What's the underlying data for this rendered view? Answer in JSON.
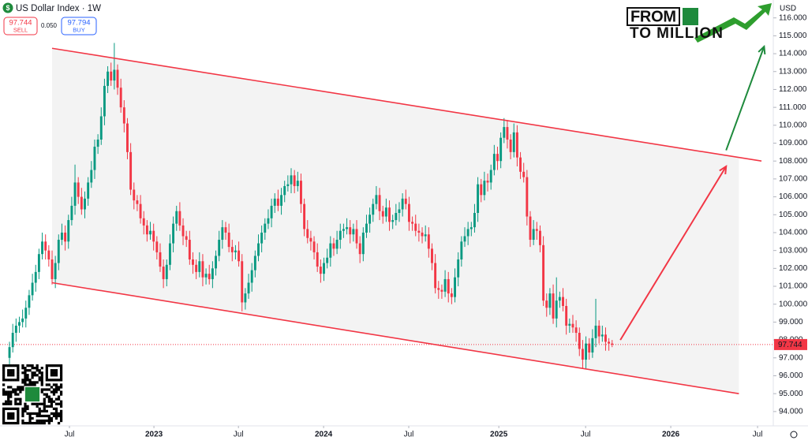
{
  "header": {
    "symbol": "US Dollar Index · 1W",
    "sell": {
      "price": 97.744,
      "label": "SELL"
    },
    "spread": "0.050",
    "buy": {
      "price": 97.794,
      "label": "BUY"
    }
  },
  "logo": {
    "line1": "FROM",
    "line2": "TO MILLION"
  },
  "chart_data": {
    "type": "candlestick",
    "currency": "USD",
    "up_color": "#089981",
    "down_color": "#f23645",
    "candles": [
      [
        97.0,
        97.9,
        96.6,
        97.6
      ],
      [
        97.6,
        98.9,
        97.3,
        98.4
      ],
      [
        98.4,
        99.2,
        97.9,
        98.8
      ],
      [
        98.8,
        99.3,
        98.4,
        99.0
      ],
      [
        99.0,
        99.7,
        98.7,
        99.2
      ],
      [
        99.2,
        100.2,
        98.7,
        99.8
      ],
      [
        99.8,
        100.8,
        99.4,
        100.5
      ],
      [
        100.5,
        101.7,
        100.2,
        101.2
      ],
      [
        101.2,
        102.2,
        100.7,
        101.8
      ],
      [
        101.8,
        103.1,
        101.4,
        102.8
      ],
      [
        102.8,
        104.0,
        102.5,
        103.5
      ],
      [
        103.5,
        103.9,
        102.5,
        103.0
      ],
      [
        103.0,
        103.3,
        102.1,
        102.5
      ],
      [
        102.5,
        103.0,
        101.1,
        101.4
      ],
      [
        101.4,
        102.7,
        100.9,
        102.3
      ],
      [
        102.3,
        103.9,
        101.9,
        103.6
      ],
      [
        103.6,
        104.5,
        103.3,
        104.0
      ],
      [
        104.0,
        104.4,
        103.0,
        103.5
      ],
      [
        103.5,
        105.0,
        103.1,
        104.7
      ],
      [
        104.7,
        106.0,
        104.4,
        105.5
      ],
      [
        105.5,
        107.8,
        105.0,
        106.8
      ],
      [
        106.8,
        107.1,
        105.6,
        106.0
      ],
      [
        106.0,
        106.5,
        105.0,
        105.3
      ],
      [
        105.3,
        106.3,
        104.8,
        105.9
      ],
      [
        105.9,
        107.1,
        105.5,
        106.8
      ],
      [
        106.8,
        108.0,
        106.5,
        107.5
      ],
      [
        107.5,
        109.2,
        107.0,
        108.8
      ],
      [
        108.8,
        109.5,
        108.4,
        109.2
      ],
      [
        109.2,
        111.0,
        108.9,
        110.5
      ],
      [
        110.5,
        112.6,
        110.0,
        112.2
      ],
      [
        112.2,
        113.3,
        111.8,
        113.0
      ],
      [
        113.0,
        113.5,
        112.2,
        112.5
      ],
      [
        112.5,
        114.6,
        112.0,
        113.1
      ],
      [
        113.1,
        113.4,
        111.7,
        112.1
      ],
      [
        112.1,
        112.6,
        110.7,
        111.0
      ],
      [
        111.0,
        111.4,
        109.6,
        110.1
      ],
      [
        110.1,
        110.4,
        108.1,
        108.5
      ],
      [
        108.5,
        109.0,
        106.1,
        106.4
      ],
      [
        106.4,
        106.8,
        105.3,
        105.8
      ],
      [
        105.8,
        106.1,
        105.2,
        105.6
      ],
      [
        105.6,
        106.1,
        104.5,
        104.8
      ],
      [
        104.8,
        105.2,
        103.9,
        104.4
      ],
      [
        104.4,
        104.7,
        103.5,
        103.9
      ],
      [
        103.9,
        104.6,
        103.6,
        104.1
      ],
      [
        104.1,
        104.5,
        103.0,
        103.5
      ],
      [
        103.5,
        103.8,
        102.5,
        102.9
      ],
      [
        102.9,
        103.4,
        101.8,
        102.1
      ],
      [
        102.1,
        102.5,
        100.9,
        101.4
      ],
      [
        101.4,
        102.5,
        101.0,
        102.2
      ],
      [
        102.2,
        103.9,
        101.9,
        103.4
      ],
      [
        103.4,
        104.9,
        102.9,
        104.5
      ],
      [
        104.5,
        105.5,
        104.1,
        105.2
      ],
      [
        105.2,
        105.7,
        104.1,
        104.4
      ],
      [
        104.4,
        104.8,
        103.3,
        103.8
      ],
      [
        103.8,
        104.1,
        103.2,
        103.6
      ],
      [
        103.6,
        104.1,
        102.2,
        102.5
      ],
      [
        102.5,
        102.9,
        101.7,
        102.2
      ],
      [
        102.2,
        102.5,
        101.4,
        101.8
      ],
      [
        101.8,
        102.9,
        101.5,
        102.4
      ],
      [
        102.4,
        102.8,
        101.0,
        101.5
      ],
      [
        101.5,
        102.0,
        101.1,
        101.7
      ],
      [
        101.7,
        102.2,
        101.1,
        101.4
      ],
      [
        101.4,
        102.4,
        100.9,
        102.0
      ],
      [
        102.0,
        103.0,
        101.6,
        102.7
      ],
      [
        102.7,
        104.1,
        102.4,
        103.6
      ],
      [
        103.6,
        104.7,
        103.1,
        104.3
      ],
      [
        104.3,
        104.6,
        103.6,
        104.0
      ],
      [
        104.0,
        104.5,
        102.9,
        103.2
      ],
      [
        103.2,
        103.6,
        102.4,
        102.9
      ],
      [
        102.9,
        103.3,
        102.5,
        103.0
      ],
      [
        103.0,
        103.5,
        102.1,
        102.4
      ],
      [
        102.4,
        102.8,
        99.6,
        100.1
      ],
      [
        100.1,
        100.9,
        99.7,
        100.6
      ],
      [
        100.6,
        101.7,
        100.3,
        101.2
      ],
      [
        101.2,
        102.3,
        100.7,
        101.9
      ],
      [
        101.9,
        103.0,
        101.5,
        102.7
      ],
      [
        102.7,
        103.9,
        102.4,
        103.4
      ],
      [
        103.4,
        104.4,
        102.9,
        104.0
      ],
      [
        104.0,
        104.8,
        103.6,
        104.5
      ],
      [
        104.5,
        105.3,
        104.2,
        104.8
      ],
      [
        104.8,
        105.9,
        104.3,
        105.5
      ],
      [
        105.5,
        106.2,
        105.1,
        105.9
      ],
      [
        105.9,
        106.4,
        105.2,
        105.5
      ],
      [
        105.5,
        106.5,
        105.0,
        106.1
      ],
      [
        106.1,
        106.9,
        105.7,
        106.6
      ],
      [
        106.6,
        107.2,
        106.3,
        106.7
      ],
      [
        106.7,
        107.6,
        106.2,
        107.2
      ],
      [
        107.2,
        107.5,
        106.2,
        106.6
      ],
      [
        106.6,
        107.4,
        106.3,
        106.9
      ],
      [
        106.9,
        107.3,
        105.1,
        105.6
      ],
      [
        105.6,
        105.9,
        103.8,
        104.2
      ],
      [
        104.2,
        104.7,
        103.4,
        103.7
      ],
      [
        103.7,
        104.1,
        103.0,
        103.5
      ],
      [
        103.5,
        103.8,
        102.5,
        102.9
      ],
      [
        102.9,
        103.4,
        101.8,
        102.1
      ],
      [
        102.1,
        102.5,
        101.2,
        101.7
      ],
      [
        101.7,
        102.6,
        101.3,
        102.3
      ],
      [
        102.3,
        103.1,
        102.0,
        102.6
      ],
      [
        102.6,
        103.8,
        102.1,
        103.4
      ],
      [
        103.4,
        103.7,
        102.7,
        103.1
      ],
      [
        103.1,
        104.1,
        102.8,
        103.6
      ],
      [
        103.6,
        104.5,
        103.1,
        104.1
      ],
      [
        104.1,
        104.5,
        103.7,
        104.2
      ],
      [
        104.2,
        104.8,
        103.9,
        104.3
      ],
      [
        104.3,
        104.7,
        103.4,
        103.9
      ],
      [
        103.9,
        104.5,
        103.5,
        104.2
      ],
      [
        104.2,
        104.7,
        103.1,
        103.4
      ],
      [
        103.4,
        103.8,
        102.3,
        102.8
      ],
      [
        102.8,
        104.3,
        102.4,
        104.0
      ],
      [
        104.0,
        105.0,
        103.7,
        104.5
      ],
      [
        104.5,
        105.4,
        104.0,
        105.0
      ],
      [
        105.0,
        105.9,
        104.6,
        105.6
      ],
      [
        105.6,
        106.6,
        105.3,
        106.1
      ],
      [
        106.1,
        106.5,
        104.7,
        105.2
      ],
      [
        105.2,
        105.5,
        104.5,
        104.9
      ],
      [
        104.9,
        105.9,
        104.6,
        105.4
      ],
      [
        105.4,
        105.8,
        104.1,
        104.6
      ],
      [
        104.6,
        105.0,
        104.2,
        104.7
      ],
      [
        104.7,
        105.6,
        104.4,
        105.1
      ],
      [
        105.1,
        105.7,
        104.6,
        105.3
      ],
      [
        105.3,
        106.2,
        104.9,
        105.9
      ],
      [
        105.9,
        106.4,
        105.3,
        105.6
      ],
      [
        105.6,
        106.0,
        104.1,
        104.6
      ],
      [
        104.6,
        104.9,
        104.1,
        104.5
      ],
      [
        104.5,
        105.0,
        103.8,
        104.1
      ],
      [
        104.1,
        104.5,
        103.5,
        104.0
      ],
      [
        104.0,
        104.3,
        103.4,
        103.8
      ],
      [
        103.8,
        104.4,
        103.5,
        103.9
      ],
      [
        103.9,
        104.3,
        102.6,
        103.1
      ],
      [
        103.1,
        103.4,
        101.9,
        102.3
      ],
      [
        102.3,
        102.8,
        100.6,
        100.9
      ],
      [
        100.9,
        101.3,
        100.3,
        100.8
      ],
      [
        100.8,
        101.1,
        100.3,
        100.7
      ],
      [
        100.7,
        101.9,
        100.4,
        101.4
      ],
      [
        101.4,
        101.8,
        100.1,
        100.6
      ],
      [
        100.6,
        100.9,
        100.0,
        100.4
      ],
      [
        100.4,
        102.0,
        100.1,
        101.5
      ],
      [
        101.5,
        102.9,
        101.0,
        102.5
      ],
      [
        102.5,
        103.8,
        102.1,
        103.5
      ],
      [
        103.5,
        104.3,
        103.2,
        103.8
      ],
      [
        103.8,
        104.6,
        103.3,
        104.2
      ],
      [
        104.2,
        104.6,
        103.8,
        104.3
      ],
      [
        104.3,
        105.6,
        104.0,
        105.1
      ],
      [
        105.1,
        107.1,
        104.6,
        106.7
      ],
      [
        106.7,
        107.0,
        105.7,
        106.1
      ],
      [
        106.1,
        107.4,
        105.8,
        106.9
      ],
      [
        106.9,
        107.3,
        106.3,
        106.8
      ],
      [
        106.8,
        107.8,
        106.4,
        107.5
      ],
      [
        107.5,
        108.9,
        107.2,
        108.4
      ],
      [
        108.4,
        108.8,
        107.5,
        108.0
      ],
      [
        108.0,
        109.6,
        107.6,
        109.3
      ],
      [
        109.3,
        110.4,
        109.0,
        109.9
      ],
      [
        109.9,
        110.3,
        108.7,
        109.2
      ],
      [
        109.2,
        109.5,
        108.1,
        108.5
      ],
      [
        108.5,
        110.1,
        108.2,
        109.6
      ],
      [
        109.6,
        110.0,
        107.7,
        108.2
      ],
      [
        108.2,
        108.5,
        107.0,
        107.4
      ],
      [
        107.4,
        107.9,
        106.8,
        107.1
      ],
      [
        107.1,
        107.5,
        104.4,
        104.9
      ],
      [
        104.9,
        105.2,
        103.2,
        103.6
      ],
      [
        103.6,
        104.7,
        103.3,
        104.2
      ],
      [
        104.2,
        104.6,
        103.6,
        104.1
      ],
      [
        104.1,
        104.4,
        102.9,
        103.3
      ],
      [
        103.3,
        103.8,
        99.9,
        100.2
      ],
      [
        100.2,
        100.6,
        99.3,
        99.8
      ],
      [
        99.8,
        100.9,
        99.4,
        100.6
      ],
      [
        100.6,
        101.1,
        98.9,
        99.2
      ],
      [
        99.2,
        101.5,
        98.7,
        100.2
      ],
      [
        100.2,
        100.7,
        99.8,
        100.4
      ],
      [
        100.4,
        100.9,
        99.6,
        99.9
      ],
      [
        99.9,
        100.3,
        98.3,
        98.8
      ],
      [
        98.8,
        99.2,
        98.4,
        98.9
      ],
      [
        98.9,
        99.4,
        98.4,
        98.7
      ],
      [
        98.7,
        99.1,
        97.9,
        98.4
      ],
      [
        98.4,
        98.7,
        97.1,
        97.5
      ],
      [
        97.5,
        98.0,
        96.4,
        96.9
      ],
      [
        96.9,
        98.2,
        96.4,
        97.8
      ],
      [
        97.8,
        98.1,
        96.9,
        97.3
      ],
      [
        97.3,
        98.6,
        97.0,
        98.1
      ],
      [
        98.1,
        100.3,
        97.6,
        98.8
      ],
      [
        98.8,
        99.1,
        97.8,
        98.2
      ],
      [
        98.2,
        98.8,
        97.9,
        98.3
      ],
      [
        98.3,
        98.7,
        97.4,
        97.9
      ],
      [
        97.9,
        98.1,
        97.4,
        97.8
      ],
      [
        97.8,
        98.0,
        97.6,
        97.74
      ]
    ],
    "ylim": [
      93.2,
      117.0
    ],
    "yticks": [
      {
        "value": 94,
        "label": "94.000"
      },
      {
        "value": 95,
        "label": "95.000"
      },
      {
        "value": 96,
        "label": "96.000"
      },
      {
        "value": 97,
        "label": "97.000"
      },
      {
        "value": 98,
        "label": "98.000"
      },
      {
        "value": 99,
        "label": "99.000"
      },
      {
        "value": 100,
        "label": "100.000"
      },
      {
        "value": 101,
        "label": "101.000"
      },
      {
        "value": 102,
        "label": "102.000"
      },
      {
        "value": 103,
        "label": "103.000"
      },
      {
        "value": 104,
        "label": "104.000"
      },
      {
        "value": 105,
        "label": "105.000"
      },
      {
        "value": 106,
        "label": "106.000"
      },
      {
        "value": 107,
        "label": "107.000"
      },
      {
        "value": 108,
        "label": "108.000"
      },
      {
        "value": 109,
        "label": "109.000"
      },
      {
        "value": 110,
        "label": "110.000"
      },
      {
        "value": 111,
        "label": "111.000"
      },
      {
        "value": 112,
        "label": "112.000"
      },
      {
        "value": 113,
        "label": "113.000"
      },
      {
        "value": 114,
        "label": "114.000"
      },
      {
        "value": 115,
        "label": "115.000"
      },
      {
        "value": 116,
        "label": "116.000"
      }
    ],
    "xlim": [
      -2.9,
      233.2
    ],
    "xticks": [
      {
        "value": 18.3,
        "label": "Jul"
      },
      {
        "value": 44.1,
        "label": "2023"
      },
      {
        "value": 69.9,
        "label": "Jul"
      },
      {
        "value": 95.9,
        "label": "2024"
      },
      {
        "value": 121.9,
        "label": "Jul"
      },
      {
        "value": 149.4,
        "label": "2025"
      },
      {
        "value": 175.9,
        "label": "Jul"
      },
      {
        "value": 201.9,
        "label": "2026"
      },
      {
        "value": 228.4,
        "label": "Jul"
      }
    ],
    "last_price": 97.744,
    "channel": {
      "color": "#f23645",
      "upper": [
        [
          13,
          114.3
        ],
        [
          229.6,
          108.0
        ]
      ],
      "lower": [
        [
          13,
          101.2
        ],
        [
          222.7,
          95.0
        ]
      ]
    },
    "arrows": [
      {
        "color": "#f23645",
        "points": [
          [
            186.5,
            98.0
          ],
          [
            218.8,
            107.7
          ]
        ]
      },
      {
        "color": "#1e8a3c",
        "points": [
          [
            218.8,
            108.6
          ],
          [
            230.4,
            114.4
          ]
        ]
      }
    ]
  }
}
